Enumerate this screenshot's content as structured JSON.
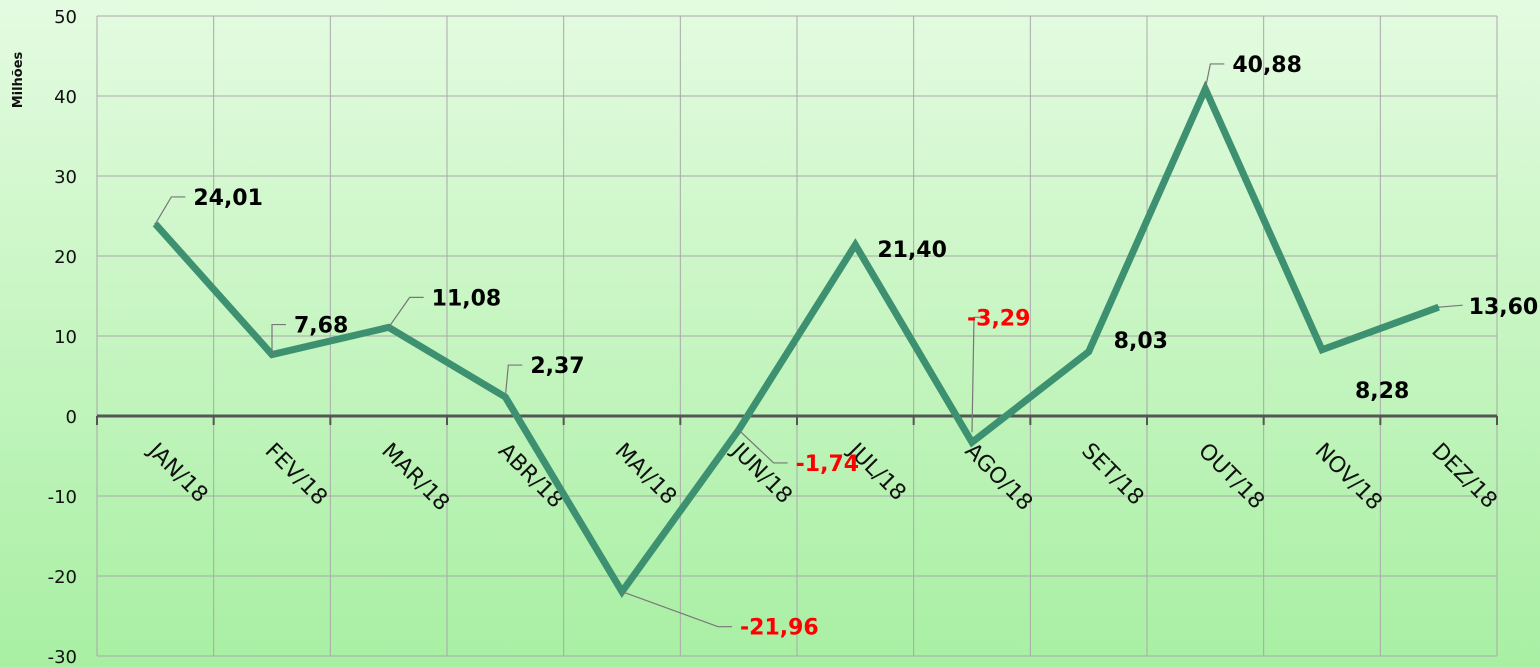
{
  "chart_data": {
    "type": "line",
    "ylabel": "Milhões",
    "ylim": [
      -30,
      50
    ],
    "yticks": [
      "50",
      "40",
      "30",
      "20",
      "10",
      "0",
      "-10",
      "-20",
      "-30"
    ],
    "categories": [
      "JAN/18",
      "FEV/18",
      "MAR/18",
      "ABR/18",
      "MAI/18",
      "JUN/18",
      "JUL/18",
      "AGO/18",
      "SET/18",
      "OUT/18",
      "NOV/18",
      "DEZ/18"
    ],
    "values": [
      24.01,
      7.68,
      11.08,
      2.37,
      -21.96,
      -1.74,
      21.4,
      -3.29,
      8.03,
      40.88,
      8.28,
      13.6
    ],
    "data_labels": [
      "24,01",
      "7,68",
      "11,08",
      "2,37",
      "-21,96",
      "-1,74",
      "21,40",
      "-3,29",
      "8,03",
      "40,88",
      "8,28",
      "13,60"
    ],
    "grid": true,
    "line_color": "#3d9171",
    "positive_label_color": "#000000",
    "negative_label_color": "#ff0000"
  }
}
